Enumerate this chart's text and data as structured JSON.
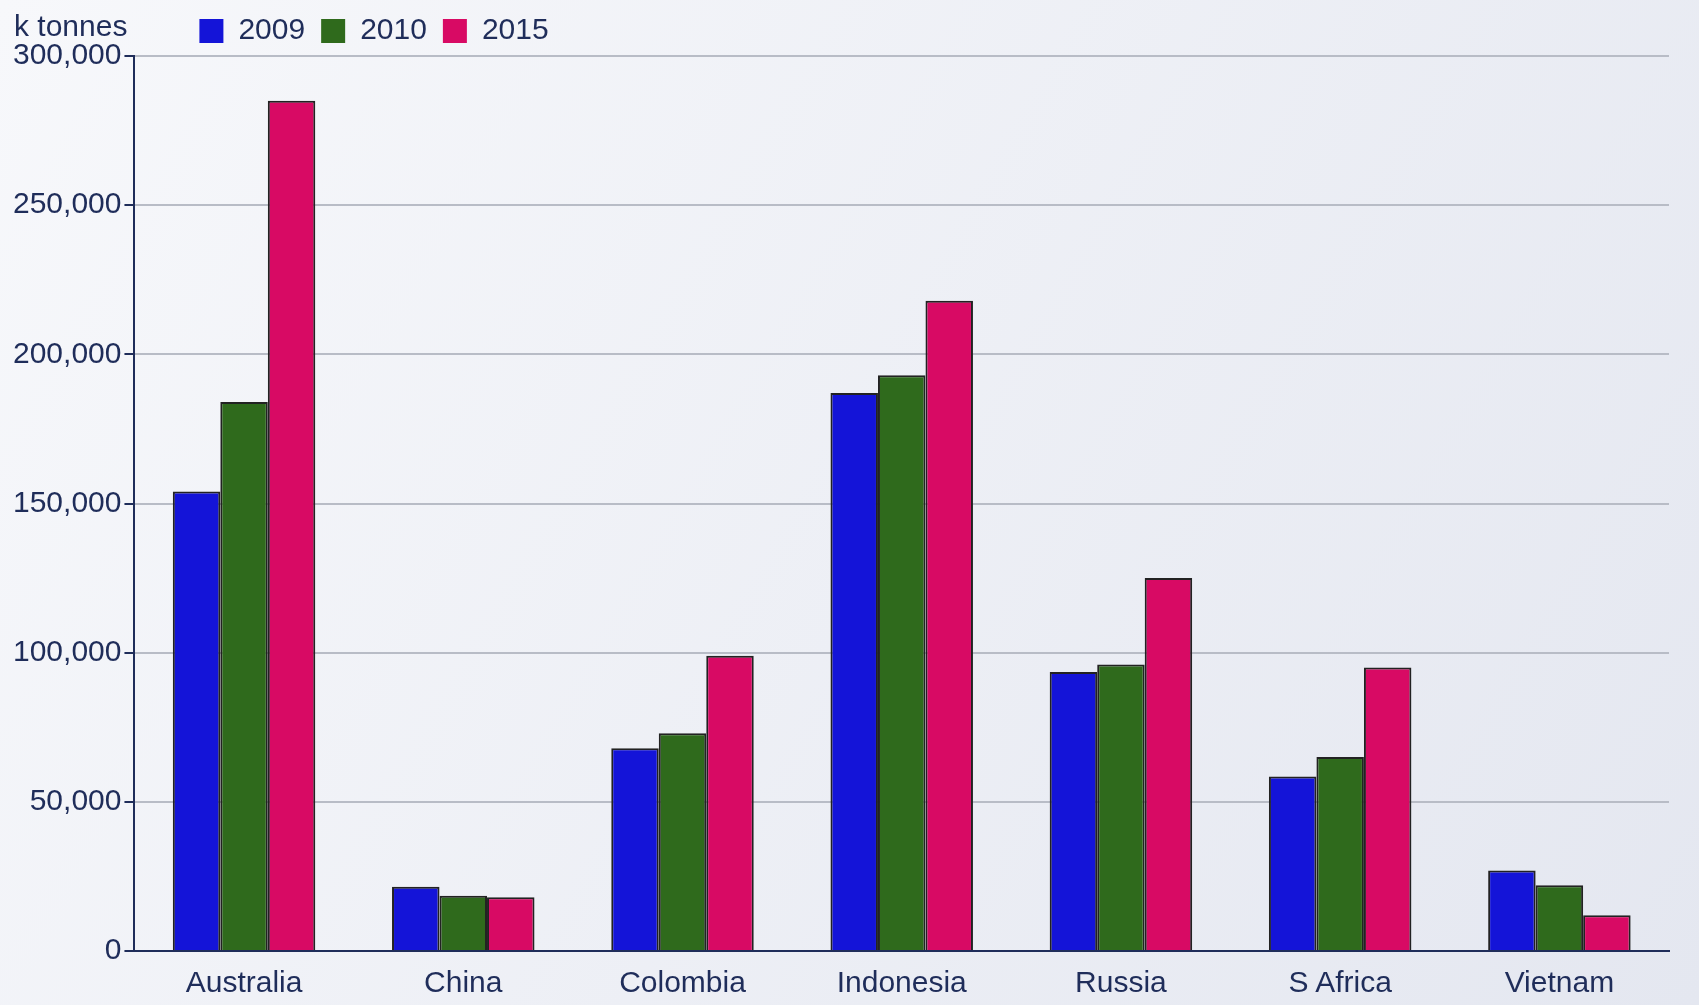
{
  "chart_data": {
    "type": "bar",
    "ylabel": "k tonnes",
    "categories": [
      "Australia",
      "China",
      "Colombia",
      "Indonesia",
      "Russia",
      "S Africa",
      "Vietnam"
    ],
    "series": [
      {
        "name": "2009",
        "color": "#1414d8",
        "values": [
          154000,
          21500,
          68000,
          187000,
          93500,
          58500,
          27000
        ]
      },
      {
        "name": "2010",
        "color": "#2f6a1c",
        "values": [
          184000,
          18500,
          73000,
          193000,
          96000,
          65000,
          22000
        ]
      },
      {
        "name": "2015",
        "color": "#d80a64",
        "values": [
          285000,
          18000,
          99000,
          218000,
          125000,
          95000,
          12000
        ]
      }
    ],
    "ylim": [
      0,
      300000
    ],
    "yticks": [
      {
        "value": 0,
        "label": "0"
      },
      {
        "value": 50000,
        "label": "50,000"
      },
      {
        "value": 100000,
        "label": "100,000"
      },
      {
        "value": 150000,
        "label": "150,000"
      },
      {
        "value": 200000,
        "label": "200,000"
      },
      {
        "value": 250000,
        "label": "250,000"
      },
      {
        "value": 300000,
        "label": "300,000"
      }
    ],
    "grid": "y",
    "legend": "top left"
  }
}
